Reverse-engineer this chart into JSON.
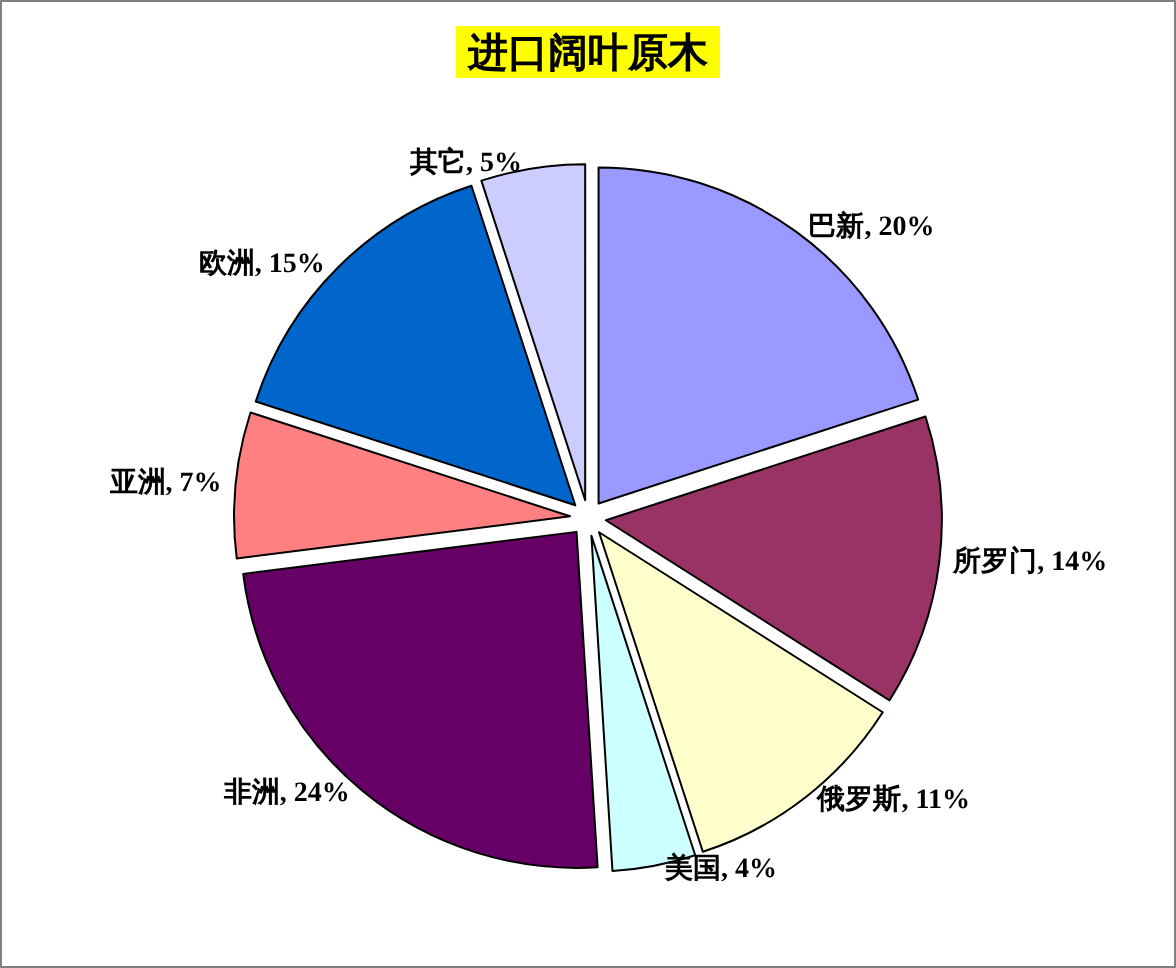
{
  "chart_data": {
    "type": "pie",
    "title": "进口阔叶原木",
    "categories": [
      "巴新",
      "所罗门",
      "俄罗斯",
      "美国",
      "非洲",
      "亚洲",
      "欧洲",
      "其它"
    ],
    "values": [
      20,
      14,
      11,
      4,
      24,
      7,
      15,
      5
    ],
    "value_labels": [
      "20%",
      "14%",
      "11%",
      "4%",
      "24%",
      "7%",
      "15%",
      "5%"
    ],
    "colors": [
      "#9999ff",
      "#993366",
      "#ffffcc",
      "#ccffff",
      "#660066",
      "#ff8080",
      "#0066cc",
      "#ccccff"
    ]
  }
}
